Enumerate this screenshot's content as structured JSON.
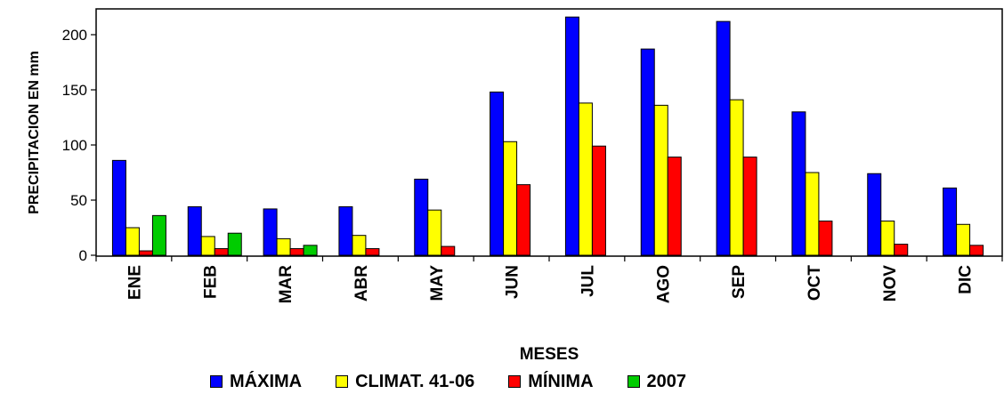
{
  "chart_data": {
    "type": "bar",
    "xlabel": "MESES",
    "ylabel": "PRECIPITACION EN mm",
    "ylim": [
      0,
      220
    ],
    "yticks": [
      0,
      50,
      100,
      150,
      200
    ],
    "grid": false,
    "legend_position": "bottom",
    "categories": [
      "ENE",
      "FEB",
      "MAR",
      "ABR",
      "MAY",
      "JUN",
      "JUL",
      "AGO",
      "SEP",
      "OCT",
      "NOV",
      "DIC"
    ],
    "series": [
      {
        "name": "MÁXIMA",
        "color": "#0000ff",
        "values": [
          86,
          44,
          42,
          44,
          69,
          148,
          216,
          187,
          212,
          130,
          74,
          61
        ]
      },
      {
        "name": "CLIMAT. 41-06",
        "color": "#ffff00",
        "values": [
          25,
          17,
          15,
          18,
          41,
          103,
          138,
          136,
          141,
          75,
          31,
          28
        ]
      },
      {
        "name": "MÍNIMA",
        "color": "#ff0000",
        "values": [
          4,
          6,
          6,
          6,
          8,
          64,
          99,
          89,
          89,
          31,
          10,
          9
        ]
      },
      {
        "name": "2007",
        "color": "#00cc00",
        "values": [
          36,
          20,
          9,
          null,
          null,
          null,
          null,
          null,
          null,
          null,
          null,
          null
        ]
      }
    ]
  }
}
